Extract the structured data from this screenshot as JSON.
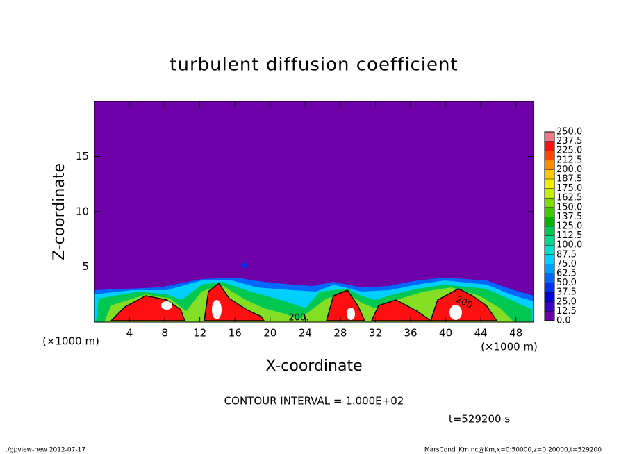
{
  "chart_data": {
    "type": "contour",
    "title": "turbulent diffusion coefficient",
    "x_label": "X-coordinate",
    "y_label": "Z-coordinate",
    "x_unit_left": "(×1000 m)",
    "x_unit_right": "(×1000 m)",
    "xlim": [
      0,
      50
    ],
    "ylim": [
      0,
      20
    ],
    "xticks": [
      4,
      8,
      12,
      16,
      20,
      24,
      28,
      32,
      36,
      40,
      44,
      48
    ],
    "yticks": [
      5,
      10,
      15
    ],
    "colorbar": {
      "levels": [
        {
          "value": 0,
          "label": "0.0"
        },
        12.5,
        {
          "value": 25,
          "label": "25.0"
        },
        37.5,
        {
          "value": 50,
          "label": "50.0"
        },
        62.5,
        {
          "value": 75,
          "label": "75.0"
        },
        87.5,
        {
          "value": 100,
          "label": "100.0"
        },
        112.5,
        {
          "value": 125,
          "label": "125.0"
        },
        137.5,
        {
          "value": 150,
          "label": "150.0"
        },
        162.5,
        {
          "value": 175,
          "label": "175.0"
        },
        187.5,
        {
          "value": 200,
          "label": "200.0"
        },
        212.5,
        {
          "value": 225,
          "label": "225.0"
        },
        237.5,
        {
          "value": 250,
          "label": "250.0"
        }
      ],
      "colors": [
        "#6e00a8",
        "#3a00c8",
        "#0000d8",
        "#0030f0",
        "#0068ff",
        "#00a0ff",
        "#00d0ff",
        "#00e0c8",
        "#00d890",
        "#00c850",
        "#00b400",
        "#40c800",
        "#80dc00",
        "#c0f000",
        "#f0f000",
        "#ffc800",
        "#ff8c00",
        "#ff4600",
        "#ff1010",
        "#f07a8a"
      ]
    },
    "contour_labels": [
      "200.",
      "200"
    ],
    "contour_interval": "CONTOUR INTERVAL = 1.000E+02",
    "time_label": "t=529200 s",
    "footer_left": "./gpview-new  2012-07-17",
    "footer_right": "MarsCond_Km.nc@Km,x=0:50000,z=0:20000,t=529200"
  }
}
